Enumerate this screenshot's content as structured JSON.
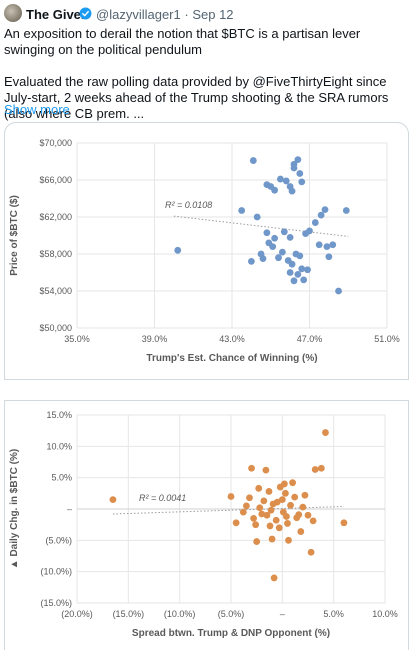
{
  "tweet": {
    "author_name": "The Giver",
    "handle": "@lazyvillager1",
    "separator": "·",
    "date": "Sep 12",
    "verified_icon": "verified-badge-icon",
    "text_line1": "An exposition to derail the notion that $BTC is a partisan lever swinging on the political pendulum",
    "text_line2": "Evaluated the raw polling data provided by @FiveThirtyEight since July-start, 2 weeks ahead of the Trump shooting & the SRA rumors (also where CB prem. ...",
    "show_more": "Show more"
  },
  "chart_data": [
    {
      "type": "scatter",
      "xlabel": "Trump's Est. Chance of Winning (%)",
      "ylabel": "Price of $BTC ($)",
      "xlim": [
        35,
        51
      ],
      "ylim": [
        50000,
        70000
      ],
      "x_ticks": [
        "35.0%",
        "39.0%",
        "43.0%",
        "47.0%",
        "51.0%"
      ],
      "y_ticks": [
        "$50,000",
        "$54,000",
        "$58,000",
        "$62,000",
        "$66,000",
        "$70,000"
      ],
      "annotation": "R² = 0.0108",
      "trendline": [
        [
          40,
          62100
        ],
        [
          49,
          59900
        ]
      ],
      "color": "#6f97c9",
      "points": [
        [
          40.2,
          58400
        ],
        [
          43.5,
          62700
        ],
        [
          44.0,
          57200
        ],
        [
          44.3,
          62000
        ],
        [
          44.6,
          57500
        ],
        [
          44.1,
          68100
        ],
        [
          44.8,
          65500
        ],
        [
          45.0,
          65300
        ],
        [
          45.2,
          64900
        ],
        [
          45.5,
          66100
        ],
        [
          45.8,
          65900
        ],
        [
          46.0,
          65300
        ],
        [
          46.1,
          64800
        ],
        [
          46.2,
          67700
        ],
        [
          46.4,
          68200
        ],
        [
          46.5,
          66700
        ],
        [
          46.6,
          65800
        ],
        [
          46.2,
          67300
        ],
        [
          44.8,
          60300
        ],
        [
          44.9,
          59200
        ],
        [
          45.1,
          58800
        ],
        [
          45.2,
          59700
        ],
        [
          45.4,
          57600
        ],
        [
          45.6,
          58200
        ],
        [
          45.7,
          60400
        ],
        [
          45.9,
          57300
        ],
        [
          46.0,
          59800
        ],
        [
          46.1,
          56900
        ],
        [
          46.3,
          58000
        ],
        [
          46.5,
          57800
        ],
        [
          46.6,
          56400
        ],
        [
          46.4,
          55800
        ],
        [
          46.7,
          55200
        ],
        [
          46.8,
          60200
        ],
        [
          47.0,
          60500
        ],
        [
          47.3,
          61400
        ],
        [
          47.6,
          62200
        ],
        [
          47.8,
          62800
        ],
        [
          47.5,
          59000
        ],
        [
          47.9,
          58800
        ],
        [
          48.2,
          59000
        ],
        [
          48.0,
          57700
        ],
        [
          48.5,
          54000
        ],
        [
          48.9,
          62700
        ],
        [
          46.0,
          56000
        ],
        [
          46.2,
          55100
        ],
        [
          44.5,
          58000
        ],
        [
          46.9,
          56300
        ]
      ]
    },
    {
      "type": "scatter",
      "xlabel": "Spread btwn. Trump & DNP Opponent (%)",
      "ylabel": "Daily Chg. in $BTC (%)",
      "xlim": [
        -20,
        10
      ],
      "ylim": [
        -15,
        15
      ],
      "x_ticks": [
        "(20.0%)",
        "(15.0%)",
        "(10.0%)",
        "(5.0%)",
        "–",
        "5.0%",
        "10.0%"
      ],
      "y_ticks": [
        "(15.0%)",
        "(10.0%)",
        "(5.0%)",
        "–",
        "5.0%",
        "10.0%",
        "15.0%"
      ],
      "annotation": "R² = 0.0041",
      "trendline": [
        [
          -16.5,
          -0.8
        ],
        [
          6.0,
          0.4
        ]
      ],
      "color": "#dc8e4d",
      "points": [
        [
          -16.5,
          1.5
        ],
        [
          -5.0,
          2.0
        ],
        [
          -4.5,
          -2.2
        ],
        [
          -3.8,
          -0.5
        ],
        [
          -3.5,
          0.5
        ],
        [
          -3.2,
          1.8
        ],
        [
          -3.0,
          6.5
        ],
        [
          -2.8,
          -1.5
        ],
        [
          -2.6,
          -2.5
        ],
        [
          -2.5,
          -5.2
        ],
        [
          -2.3,
          3.3
        ],
        [
          -2.2,
          0.2
        ],
        [
          -2.0,
          -0.8
        ],
        [
          -1.8,
          1.3
        ],
        [
          -1.6,
          6.2
        ],
        [
          -1.5,
          -1.0
        ],
        [
          -1.3,
          2.8
        ],
        [
          -1.2,
          -2.7
        ],
        [
          -1.0,
          -4.8
        ],
        [
          -0.9,
          0.8
        ],
        [
          -0.8,
          -11.0
        ],
        [
          -0.6,
          -1.8
        ],
        [
          -0.5,
          1.1
        ],
        [
          -0.3,
          -3.0
        ],
        [
          -0.2,
          3.5
        ],
        [
          0.0,
          1.5
        ],
        [
          0.1,
          -0.5
        ],
        [
          0.2,
          4.0
        ],
        [
          0.3,
          2.5
        ],
        [
          0.5,
          -2.3
        ],
        [
          0.6,
          -5.0
        ],
        [
          0.8,
          0.6
        ],
        [
          1.0,
          4.2
        ],
        [
          1.2,
          1.9
        ],
        [
          1.4,
          -1.4
        ],
        [
          1.6,
          -0.9
        ],
        [
          1.8,
          -3.6
        ],
        [
          2.0,
          0.3
        ],
        [
          2.2,
          2.2
        ],
        [
          2.5,
          -1.0
        ],
        [
          2.8,
          -6.9
        ],
        [
          3.0,
          -1.9
        ],
        [
          3.2,
          6.3
        ],
        [
          3.8,
          6.5
        ],
        [
          4.2,
          12.2
        ],
        [
          6.0,
          -2.2
        ],
        [
          -1.1,
          -0.2
        ],
        [
          0.4,
          -1.2
        ]
      ]
    }
  ]
}
